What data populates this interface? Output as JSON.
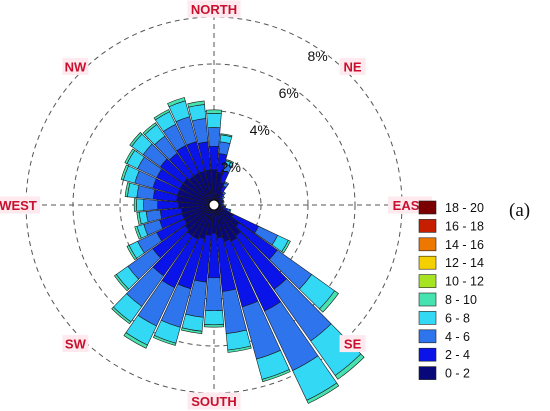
{
  "panel_label": "(a)",
  "chart_data": {
    "type": "wind-rose",
    "directions": [
      "NORTH",
      "NE",
      "EAST",
      "SE",
      "SOUTH",
      "SW",
      "WEST",
      "NW"
    ],
    "ring_labels": [
      "2%",
      "4%",
      "6%",
      "8%"
    ],
    "rings_percent": [
      2,
      4,
      6,
      8
    ],
    "legend": {
      "items": [
        {
          "label": "18 - 20",
          "color": "#7a0000"
        },
        {
          "label": "16 - 18",
          "color": "#c81e00"
        },
        {
          "label": "14 - 16",
          "color": "#ee7700"
        },
        {
          "label": "12 - 14",
          "color": "#f5d000"
        },
        {
          "label": "10 - 12",
          "color": "#a6e322"
        },
        {
          "label": "8 - 10",
          "color": "#46e3b0"
        },
        {
          "label": "6 - 8",
          "color": "#33d8f5"
        },
        {
          "label": "4 - 6",
          "color": "#2e74ec"
        },
        {
          "label": "2 - 4",
          "color": "#0a14e8"
        },
        {
          "label": "0 - 2",
          "color": "#08087a"
        }
      ]
    },
    "sectors": [
      {
        "bearing": 0,
        "values": [
          1.5,
          1.0,
          0.8,
          0.6,
          0.15
        ]
      },
      {
        "bearing": 10,
        "values": [
          1.4,
          0.8,
          0.5,
          0.3,
          0.05
        ]
      },
      {
        "bearing": 20,
        "values": [
          1.0,
          0.5,
          0.3,
          0.15,
          0.05
        ]
      },
      {
        "bearing": 30,
        "values": [
          0.6,
          0.3,
          0.15,
          0.05,
          0.0
        ]
      },
      {
        "bearing": 40,
        "values": [
          0.4,
          0.2,
          0.1,
          0.0,
          0.0
        ]
      },
      {
        "bearing": 50,
        "values": [
          0.3,
          0.15,
          0.1,
          0.0,
          0.0
        ]
      },
      {
        "bearing": 60,
        "values": [
          0.25,
          0.15,
          0.05,
          0.0,
          0.0
        ]
      },
      {
        "bearing": 70,
        "values": [
          0.25,
          0.15,
          0.05,
          0.0,
          0.0
        ]
      },
      {
        "bearing": 80,
        "values": [
          0.25,
          0.1,
          0.05,
          0.0,
          0.0
        ]
      },
      {
        "bearing": 90,
        "values": [
          0.25,
          0.1,
          0.05,
          0.0,
          0.0
        ]
      },
      {
        "bearing": 100,
        "values": [
          0.3,
          0.15,
          0.05,
          0.0,
          0.0
        ]
      },
      {
        "bearing": 110,
        "values": [
          0.4,
          0.2,
          0.1,
          0.05,
          0.0
        ]
      },
      {
        "bearing": 120,
        "values": [
          0.9,
          1.2,
          0.9,
          0.5,
          0.1
        ]
      },
      {
        "bearing": 130,
        "values": [
          1.3,
          2.0,
          1.8,
          1.2,
          0.2
        ]
      },
      {
        "bearing": 140,
        "values": [
          1.6,
          2.8,
          2.7,
          1.8,
          0.2
        ]
      },
      {
        "bearing": 150,
        "values": [
          1.7,
          3.3,
          2.8,
          1.4,
          0.15
        ]
      },
      {
        "bearing": 160,
        "values": [
          1.6,
          2.9,
          2.3,
          0.9,
          0.1
        ]
      },
      {
        "bearing": 170,
        "values": [
          1.4,
          2.3,
          1.8,
          0.7,
          0.1
        ]
      },
      {
        "bearing": 180,
        "values": [
          1.2,
          1.9,
          1.4,
          0.6,
          0.1
        ]
      },
      {
        "bearing": 190,
        "values": [
          1.3,
          2.0,
          1.5,
          0.6,
          0.1
        ]
      },
      {
        "bearing": 200,
        "values": [
          1.5,
          2.2,
          1.7,
          0.7,
          0.1
        ]
      },
      {
        "bearing": 210,
        "values": [
          1.6,
          2.3,
          1.8,
          0.9,
          0.15
        ]
      },
      {
        "bearing": 220,
        "values": [
          1.6,
          2.1,
          1.6,
          0.8,
          0.1
        ]
      },
      {
        "bearing": 230,
        "values": [
          1.5,
          1.7,
          1.3,
          0.6,
          0.1
        ]
      },
      {
        "bearing": 240,
        "values": [
          1.4,
          1.3,
          0.9,
          0.4,
          0.1
        ]
      },
      {
        "bearing": 250,
        "values": [
          1.4,
          1.0,
          0.7,
          0.3,
          0.1
        ]
      },
      {
        "bearing": 260,
        "values": [
          1.4,
          0.9,
          0.6,
          0.3,
          0.1
        ]
      },
      {
        "bearing": 270,
        "values": [
          1.5,
          0.9,
          0.6,
          0.3,
          0.1
        ]
      },
      {
        "bearing": 280,
        "values": [
          1.6,
          1.0,
          0.7,
          0.4,
          0.1
        ]
      },
      {
        "bearing": 290,
        "values": [
          1.6,
          1.1,
          0.8,
          0.5,
          0.1
        ]
      },
      {
        "bearing": 300,
        "values": [
          1.6,
          1.1,
          0.9,
          0.5,
          0.1
        ]
      },
      {
        "bearing": 310,
        "values": [
          1.6,
          1.2,
          0.9,
          0.6,
          0.1
        ]
      },
      {
        "bearing": 320,
        "values": [
          1.5,
          1.2,
          0.9,
          0.6,
          0.1
        ]
      },
      {
        "bearing": 330,
        "values": [
          1.5,
          1.3,
          1.0,
          0.6,
          0.1
        ]
      },
      {
        "bearing": 340,
        "values": [
          1.5,
          1.3,
          1.1,
          0.7,
          0.15
        ]
      },
      {
        "bearing": 350,
        "values": [
          1.5,
          1.2,
          1.0,
          0.6,
          0.15
        ]
      }
    ]
  }
}
